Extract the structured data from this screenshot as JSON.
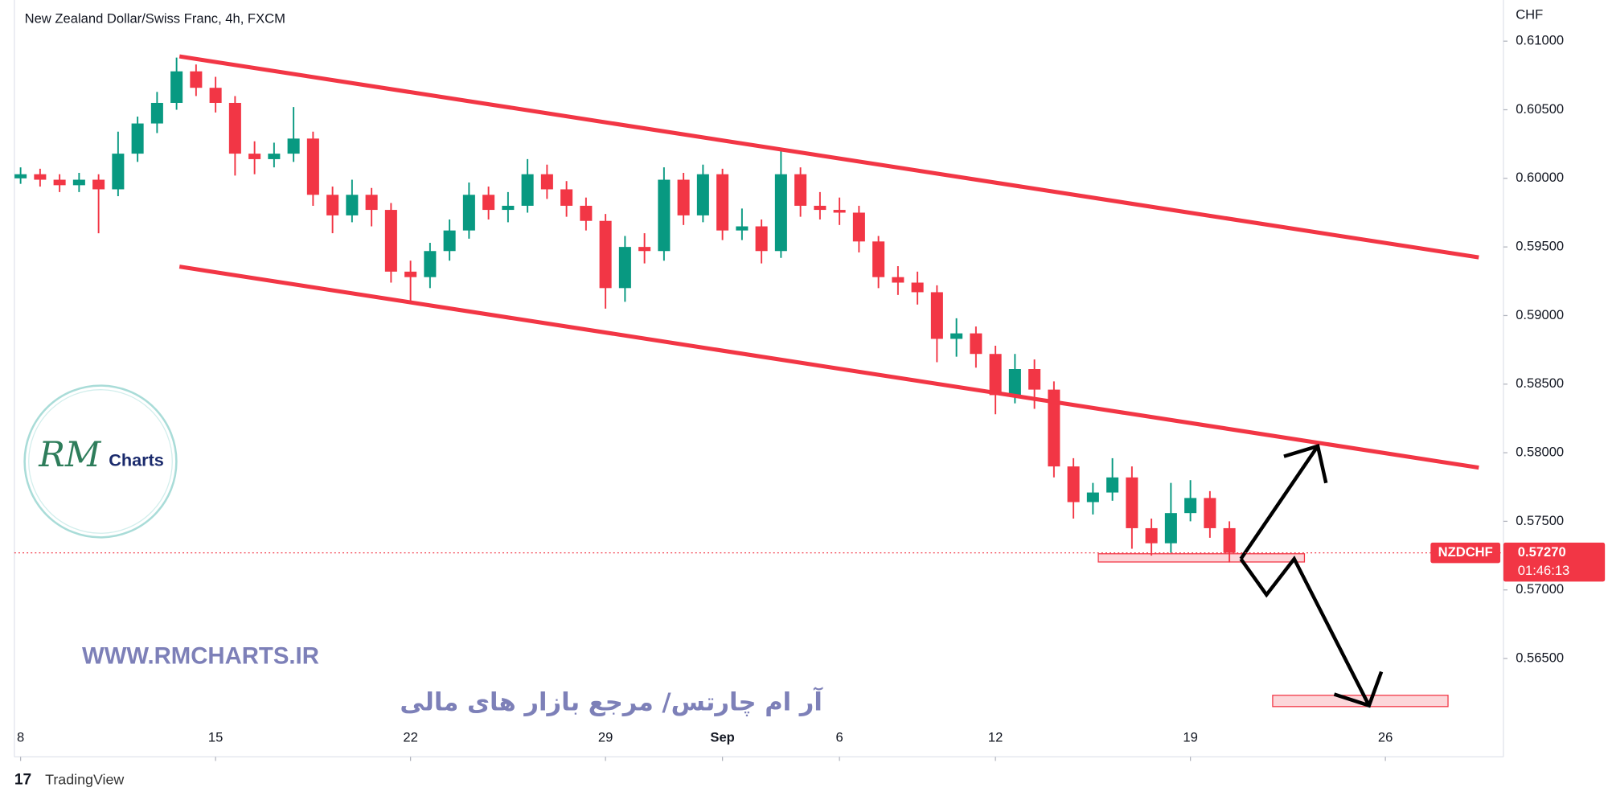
{
  "chart_data": {
    "type": "candlestick",
    "title": "New Zealand Dollar/Swiss Franc, 4h, FXCM",
    "currency": "CHF",
    "symbol": "NZDCHF",
    "last_price": {
      "value": 0.5727,
      "label": "0.57270"
    },
    "countdown": "01:46:13",
    "up_color": "#089981",
    "down_color": "#f23645",
    "x": [
      0,
      0.5,
      1,
      1.5,
      2,
      2.5,
      3,
      3.5,
      4,
      4.5,
      5,
      5.5,
      6,
      6.5,
      7,
      7.5,
      8,
      8.5,
      9,
      9.5,
      10,
      10.5,
      11,
      11.5,
      12,
      12.5,
      13,
      13.5,
      14,
      14.5,
      15,
      15.5,
      16,
      16.5,
      17,
      17.5,
      18,
      18.5,
      19,
      19.5,
      20,
      20.5,
      21,
      21.5,
      22,
      22.5,
      23,
      23.5,
      24,
      24.5,
      25,
      25.5,
      26,
      26.5,
      27,
      27.5,
      28,
      28.5,
      29,
      29.5,
      30,
      30.5,
      31
    ],
    "ohlc": [
      [
        0.6,
        0.6008,
        0.5996,
        0.6003
      ],
      [
        0.6003,
        0.6007,
        0.5994,
        0.5999
      ],
      [
        0.5999,
        0.6003,
        0.599,
        0.5995
      ],
      [
        0.5995,
        0.6004,
        0.599,
        0.5999
      ],
      [
        0.5999,
        0.6003,
        0.596,
        0.5992
      ],
      [
        0.5992,
        0.6034,
        0.5987,
        0.6018
      ],
      [
        0.6018,
        0.6045,
        0.6012,
        0.604
      ],
      [
        0.604,
        0.6063,
        0.6033,
        0.6055
      ],
      [
        0.6055,
        0.6088,
        0.605,
        0.6078
      ],
      [
        0.6078,
        0.6083,
        0.606,
        0.6066
      ],
      [
        0.6066,
        0.6074,
        0.6048,
        0.6055
      ],
      [
        0.6055,
        0.606,
        0.6002,
        0.6018
      ],
      [
        0.6018,
        0.6027,
        0.6003,
        0.6014
      ],
      [
        0.6014,
        0.6026,
        0.6008,
        0.6018
      ],
      [
        0.6018,
        0.6052,
        0.6012,
        0.6029
      ],
      [
        0.6029,
        0.6034,
        0.598,
        0.5988
      ],
      [
        0.5988,
        0.5994,
        0.596,
        0.5973
      ],
      [
        0.5973,
        0.5999,
        0.5968,
        0.5988
      ],
      [
        0.5988,
        0.5993,
        0.5965,
        0.5977
      ],
      [
        0.5977,
        0.5982,
        0.5924,
        0.5932
      ],
      [
        0.5932,
        0.594,
        0.591,
        0.5928
      ],
      [
        0.5928,
        0.5953,
        0.592,
        0.5947
      ],
      [
        0.5947,
        0.597,
        0.594,
        0.5962
      ],
      [
        0.5962,
        0.5997,
        0.5956,
        0.5988
      ],
      [
        0.5988,
        0.5994,
        0.597,
        0.5977
      ],
      [
        0.5977,
        0.599,
        0.5968,
        0.598
      ],
      [
        0.598,
        0.6014,
        0.5975,
        0.6003
      ],
      [
        0.6003,
        0.601,
        0.5985,
        0.5992
      ],
      [
        0.5992,
        0.5998,
        0.5972,
        0.598
      ],
      [
        0.598,
        0.5986,
        0.5962,
        0.5969
      ],
      [
        0.5969,
        0.5974,
        0.5905,
        0.592
      ],
      [
        0.592,
        0.5958,
        0.591,
        0.595
      ],
      [
        0.595,
        0.596,
        0.5938,
        0.5947
      ],
      [
        0.5947,
        0.6008,
        0.594,
        0.5999
      ],
      [
        0.5999,
        0.6004,
        0.5966,
        0.5973
      ],
      [
        0.5973,
        0.601,
        0.5968,
        0.6003
      ],
      [
        0.6003,
        0.6007,
        0.5955,
        0.5962
      ],
      [
        0.5962,
        0.5978,
        0.5955,
        0.5965
      ],
      [
        0.5965,
        0.597,
        0.5938,
        0.5947
      ],
      [
        0.5947,
        0.602,
        0.5942,
        0.6003
      ],
      [
        0.6003,
        0.6008,
        0.5972,
        0.598
      ],
      [
        0.598,
        0.599,
        0.597,
        0.5977
      ],
      [
        0.5977,
        0.5986,
        0.5966,
        0.5975
      ],
      [
        0.5975,
        0.598,
        0.5946,
        0.5954
      ],
      [
        0.5954,
        0.5958,
        0.592,
        0.5928
      ],
      [
        0.5928,
        0.5936,
        0.5915,
        0.5924
      ],
      [
        0.5924,
        0.5932,
        0.5908,
        0.5917
      ],
      [
        0.5917,
        0.5922,
        0.5866,
        0.5883
      ],
      [
        0.5883,
        0.5898,
        0.587,
        0.5887
      ],
      [
        0.5887,
        0.5892,
        0.5862,
        0.5872
      ],
      [
        0.5872,
        0.5878,
        0.5828,
        0.5842
      ],
      [
        0.5842,
        0.5872,
        0.5836,
        0.5861
      ],
      [
        0.5861,
        0.5868,
        0.5832,
        0.5846
      ],
      [
        0.5846,
        0.5852,
        0.5782,
        0.579
      ],
      [
        0.579,
        0.5796,
        0.5752,
        0.5764
      ],
      [
        0.5764,
        0.5778,
        0.5755,
        0.5771
      ],
      [
        0.5771,
        0.5796,
        0.5765,
        0.5782
      ],
      [
        0.5782,
        0.579,
        0.573,
        0.5745
      ],
      [
        0.5745,
        0.5752,
        0.5725,
        0.5734
      ],
      [
        0.5734,
        0.5778,
        0.5727,
        0.5756
      ],
      [
        0.5756,
        0.578,
        0.575,
        0.5767
      ],
      [
        0.5767,
        0.5772,
        0.5738,
        0.5745
      ],
      [
        0.5745,
        0.575,
        0.572,
        0.5727
      ]
    ],
    "xlim": [
      -0.16,
      38.0
    ],
    "xticks": [
      {
        "value": 0,
        "label": "8"
      },
      {
        "value": 5,
        "label": "15"
      },
      {
        "value": 10,
        "label": "22"
      },
      {
        "value": 15,
        "label": "29"
      },
      {
        "value": 18,
        "label": "Sep"
      },
      {
        "value": 21,
        "label": "6"
      },
      {
        "value": 25,
        "label": "12"
      },
      {
        "value": 30,
        "label": "19"
      },
      {
        "value": 35,
        "label": "26"
      }
    ],
    "ylim": [
      0.5603,
      0.613
    ],
    "yticks": [
      {
        "value": 0.565,
        "label": "0.56500"
      },
      {
        "value": 0.57,
        "label": "0.57000"
      },
      {
        "value": 0.575,
        "label": "0.57500"
      },
      {
        "value": 0.58,
        "label": "0.58000"
      },
      {
        "value": 0.585,
        "label": "0.58500"
      },
      {
        "value": 0.59,
        "label": "0.59000"
      },
      {
        "value": 0.595,
        "label": "0.59500"
      },
      {
        "value": 0.6,
        "label": "0.60000"
      },
      {
        "value": 0.605,
        "label": "0.60500"
      },
      {
        "value": 0.61,
        "label": "0.61000"
      }
    ]
  },
  "watermark": {
    "logo_letters": "RM",
    "logo_text": "Charts",
    "url": "WWW.RMCHARTS.IR",
    "tagline": "آر ام چارتس/ مرجع بازار های مالی"
  },
  "branding": "TradingView"
}
